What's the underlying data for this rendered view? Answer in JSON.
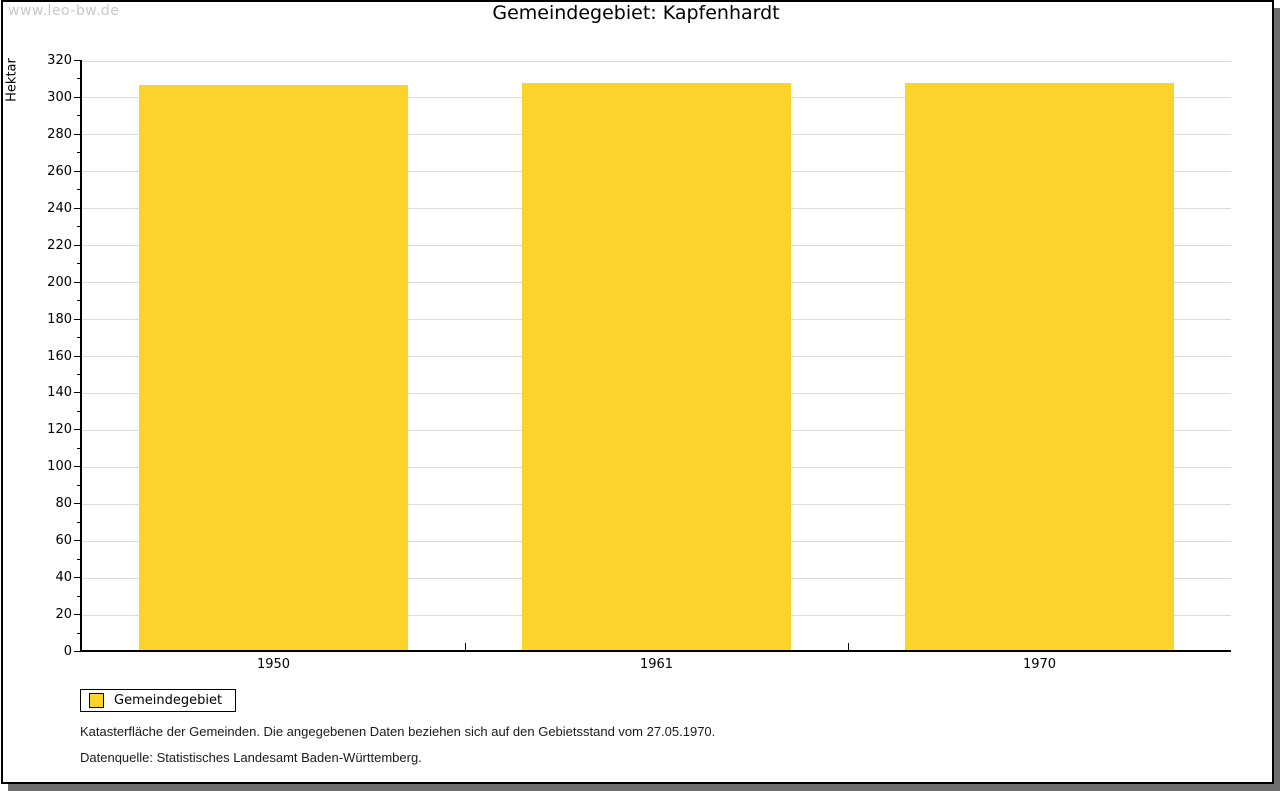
{
  "watermark": "www.leo-bw.de",
  "chart_data": {
    "type": "bar",
    "title": "Gemeindegebiet: Kapfenhardt",
    "ylabel": "Hektar",
    "xlabel": "",
    "categories": [
      "1950",
      "1961",
      "1970"
    ],
    "series": [
      {
        "name": "Gemeindegebiet",
        "values": [
          306,
          307,
          307
        ]
      }
    ],
    "ylim": [
      0,
      320
    ],
    "yticks": [
      0,
      20,
      40,
      60,
      80,
      100,
      120,
      140,
      160,
      180,
      200,
      220,
      240,
      260,
      280,
      300,
      320
    ],
    "ytick_minor_step": 10,
    "grid": true,
    "legend_position": "bottom-left",
    "bar_color": "#FCD32D"
  },
  "legend": {
    "label": "Gemeindegebiet",
    "swatch_color": "#FCD32D"
  },
  "footer": {
    "line1": "Katasterfläche der Gemeinden. Die angegebenen Daten beziehen sich auf den Gebietsstand vom 27.05.1970.",
    "line2": "Datenquelle: Statistisches Landesamt Baden-Württemberg."
  },
  "colors": {
    "bar": "#FCD32D",
    "grid": "#DCDCDC",
    "axis": "#000000",
    "shadow": "#6F6F6F",
    "watermark": "#C8C8C8",
    "background": "#FFFFFF"
  }
}
